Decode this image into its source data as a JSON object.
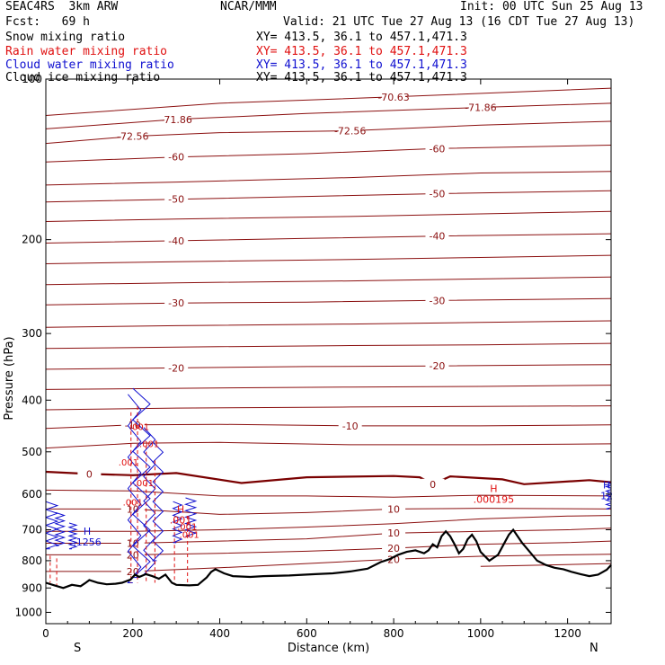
{
  "header": {
    "model": "SEAC4RS  3km ARW",
    "center": "NCAR/MMM",
    "init": "Init: 00 UTC Sun 25 Aug 13",
    "fcst": "Fcst:   69 h",
    "valid": "Valid: 21 UTC Tue 27 Aug 13 (16 CDT Tue 27 Aug 13)"
  },
  "fields": [
    {
      "label": "Snow mixing ratio",
      "xy": "XY= 413.5, 36.1 to 457.1,471.3",
      "color": "#000000"
    },
    {
      "label": "Rain water mixing ratio",
      "xy": "XY= 413.5, 36.1 to 457.1,471.3",
      "color": "#e01010"
    },
    {
      "label": "Cloud water mixing ratio",
      "xy": "XY= 413.5, 36.1 to 457.1,471.3",
      "color": "#1010d0"
    },
    {
      "label": "Cloud ice mixing ratio",
      "xy": "XY= 413.5, 36.1 to 457.1,471.3",
      "color": "#000000"
    }
  ],
  "chart_data": {
    "type": "cross-section",
    "xlabel": "Distance (km)",
    "ylabel": "Pressure (hPa)",
    "xlim": [
      0,
      1300
    ],
    "ylim": [
      1050,
      100
    ],
    "y_scale": "log",
    "x_ticks": [
      0,
      200,
      400,
      600,
      800,
      1000,
      1200
    ],
    "y_ticks": [
      200,
      300,
      400,
      500,
      600,
      700,
      800,
      900,
      1000
    ],
    "y_tick_top_label": "100",
    "x_end_labels": {
      "left": "S",
      "right": "N"
    },
    "temperature_contour_color": "#8b1010",
    "zero_contour_color": "#7a0000",
    "temperature_contours": [
      {
        "label": "-72.56",
        "points": [
          [
            0,
            132
          ],
          [
            200,
            128
          ],
          [
            400,
            126
          ],
          [
            700,
            125
          ],
          [
            1000,
            122
          ],
          [
            1300,
            120
          ]
        ]
      },
      {
        "label": "-71.86",
        "points": [
          [
            0,
            124
          ],
          [
            300,
            119
          ],
          [
            600,
            116
          ],
          [
            1000,
            113
          ],
          [
            1300,
            111
          ]
        ]
      },
      {
        "label": "-70.63",
        "points": [
          [
            0,
            117
          ],
          [
            400,
            111
          ],
          [
            800,
            108
          ],
          [
            1300,
            104
          ]
        ]
      },
      {
        "label": "-60",
        "points": [
          [
            0,
            143
          ],
          [
            300,
            140
          ],
          [
            600,
            138
          ],
          [
            900,
            135
          ],
          [
            1300,
            133
          ]
        ]
      },
      {
        "label": "",
        "points": [
          [
            0,
            158
          ],
          [
            300,
            156
          ],
          [
            700,
            153
          ],
          [
            1000,
            150
          ],
          [
            1300,
            149
          ]
        ]
      },
      {
        "label": "-50",
        "points": [
          [
            0,
            170
          ],
          [
            300,
            168
          ],
          [
            600,
            166
          ],
          [
            900,
            164
          ],
          [
            1300,
            162
          ]
        ]
      },
      {
        "label": "",
        "points": [
          [
            0,
            185
          ],
          [
            300,
            183
          ],
          [
            700,
            181
          ],
          [
            1000,
            179
          ],
          [
            1300,
            177
          ]
        ]
      },
      {
        "label": "-40",
        "points": [
          [
            0,
            203
          ],
          [
            300,
            201
          ],
          [
            600,
            199
          ],
          [
            900,
            197
          ],
          [
            1300,
            195
          ]
        ]
      },
      {
        "label": "",
        "points": [
          [
            0,
            222
          ],
          [
            300,
            220
          ],
          [
            700,
            218
          ],
          [
            1000,
            216
          ],
          [
            1300,
            214
          ]
        ]
      },
      {
        "label": "",
        "points": [
          [
            0,
            243
          ],
          [
            300,
            241
          ],
          [
            700,
            239
          ],
          [
            1000,
            237
          ],
          [
            1300,
            235
          ]
        ]
      },
      {
        "label": "-30",
        "points": [
          [
            0,
            265
          ],
          [
            300,
            263
          ],
          [
            600,
            262
          ],
          [
            900,
            260
          ],
          [
            1300,
            258
          ]
        ]
      },
      {
        "label": "",
        "points": [
          [
            0,
            292
          ],
          [
            300,
            290
          ],
          [
            700,
            288
          ],
          [
            1000,
            286
          ],
          [
            1300,
            284
          ]
        ]
      },
      {
        "label": "",
        "points": [
          [
            0,
            320
          ],
          [
            300,
            318
          ],
          [
            700,
            316
          ],
          [
            1000,
            315
          ],
          [
            1300,
            313
          ]
        ]
      },
      {
        "label": "-20",
        "points": [
          [
            0,
            350
          ],
          [
            300,
            348
          ],
          [
            600,
            346
          ],
          [
            900,
            345
          ],
          [
            1300,
            343
          ]
        ]
      },
      {
        "label": "",
        "points": [
          [
            0,
            382
          ],
          [
            300,
            380
          ],
          [
            700,
            378
          ],
          [
            1000,
            377
          ],
          [
            1300,
            375
          ]
        ]
      },
      {
        "label": "",
        "points": [
          [
            0,
            417
          ],
          [
            300,
            414
          ],
          [
            700,
            412
          ],
          [
            1000,
            411
          ],
          [
            1300,
            410
          ]
        ]
      },
      {
        "label": "-10",
        "points": [
          [
            0,
            452
          ],
          [
            200,
            445
          ],
          [
            400,
            444
          ],
          [
            700,
            447
          ],
          [
            1000,
            447
          ],
          [
            1300,
            445
          ]
        ]
      },
      {
        "label": "",
        "points": [
          [
            0,
            492
          ],
          [
            200,
            482
          ],
          [
            400,
            480
          ],
          [
            700,
            485
          ],
          [
            1000,
            485
          ],
          [
            1300,
            483
          ]
        ]
      },
      {
        "label": "0",
        "points": [
          [
            0,
            545
          ],
          [
            100,
            550
          ],
          [
            200,
            553
          ],
          [
            300,
            548
          ],
          [
            450,
            572
          ],
          [
            600,
            558
          ],
          [
            800,
            555
          ],
          [
            860,
            558
          ],
          [
            890,
            575
          ],
          [
            930,
            556
          ],
          [
            1050,
            563
          ],
          [
            1100,
            575
          ],
          [
            1250,
            565
          ],
          [
            1300,
            570
          ]
        ]
      },
      {
        "label": "",
        "points": [
          [
            0,
            590
          ],
          [
            200,
            592
          ],
          [
            400,
            605
          ],
          [
            600,
            605
          ],
          [
            800,
            608
          ],
          [
            1000,
            603
          ],
          [
            1300,
            605
          ]
        ]
      },
      {
        "label": "10",
        "points": [
          [
            0,
            640
          ],
          [
            200,
            640
          ],
          [
            400,
            655
          ],
          [
            600,
            650
          ],
          [
            800,
            640
          ],
          [
            1000,
            638
          ],
          [
            1300,
            640
          ]
        ]
      },
      {
        "label": "",
        "points": [
          [
            0,
            705
          ],
          [
            200,
            705
          ],
          [
            400,
            700
          ],
          [
            600,
            692
          ],
          [
            800,
            682
          ],
          [
            1000,
            668
          ],
          [
            1200,
            660
          ],
          [
            1300,
            658
          ]
        ]
      },
      {
        "label": "10",
        "points": [
          [
            0,
            742
          ],
          [
            200,
            742
          ],
          [
            400,
            735
          ],
          [
            600,
            728
          ],
          [
            800,
            710
          ],
          [
            1000,
            705
          ],
          [
            1200,
            700
          ],
          [
            1300,
            695
          ]
        ]
      },
      {
        "label": "20",
        "points": [
          [
            0,
            780
          ],
          [
            200,
            780
          ],
          [
            400,
            775
          ],
          [
            600,
            768
          ],
          [
            800,
            758
          ],
          [
            1000,
            745
          ],
          [
            1200,
            740
          ],
          [
            1300,
            735
          ]
        ]
      },
      {
        "label": "20",
        "points": [
          [
            0,
            838
          ],
          [
            200,
            838
          ],
          [
            400,
            825
          ],
          [
            600,
            810
          ],
          [
            800,
            795
          ],
          [
            1000,
            785
          ],
          [
            1200,
            780
          ],
          [
            1300,
            778
          ]
        ]
      },
      {
        "label": "",
        "points": [
          [
            1000,
            820
          ],
          [
            1150,
            815
          ],
          [
            1300,
            810
          ]
        ]
      }
    ],
    "terrain": [
      [
        0,
        880
      ],
      [
        20,
        890
      ],
      [
        40,
        900
      ],
      [
        60,
        888
      ],
      [
        80,
        893
      ],
      [
        90,
        882
      ],
      [
        100,
        870
      ],
      [
        120,
        880
      ],
      [
        140,
        886
      ],
      [
        160,
        884
      ],
      [
        175,
        880
      ],
      [
        195,
        868
      ],
      [
        205,
        850
      ],
      [
        215,
        858
      ],
      [
        230,
        848
      ],
      [
        245,
        855
      ],
      [
        260,
        865
      ],
      [
        275,
        850
      ],
      [
        290,
        880
      ],
      [
        300,
        888
      ],
      [
        330,
        890
      ],
      [
        350,
        888
      ],
      [
        370,
        860
      ],
      [
        380,
        840
      ],
      [
        390,
        830
      ],
      [
        410,
        845
      ],
      [
        430,
        855
      ],
      [
        470,
        858
      ],
      [
        500,
        855
      ],
      [
        560,
        853
      ],
      [
        620,
        848
      ],
      [
        660,
        845
      ],
      [
        700,
        838
      ],
      [
        740,
        828
      ],
      [
        770,
        805
      ],
      [
        790,
        795
      ],
      [
        810,
        780
      ],
      [
        830,
        770
      ],
      [
        850,
        765
      ],
      [
        870,
        775
      ],
      [
        880,
        765
      ],
      [
        890,
        745
      ],
      [
        900,
        755
      ],
      [
        910,
        720
      ],
      [
        920,
        705
      ],
      [
        930,
        720
      ],
      [
        940,
        745
      ],
      [
        950,
        775
      ],
      [
        960,
        760
      ],
      [
        970,
        730
      ],
      [
        980,
        715
      ],
      [
        990,
        735
      ],
      [
        1000,
        770
      ],
      [
        1020,
        800
      ],
      [
        1040,
        780
      ],
      [
        1055,
        740
      ],
      [
        1065,
        715
      ],
      [
        1075,
        700
      ],
      [
        1085,
        720
      ],
      [
        1095,
        740
      ],
      [
        1110,
        765
      ],
      [
        1130,
        800
      ],
      [
        1150,
        815
      ],
      [
        1170,
        825
      ],
      [
        1190,
        830
      ],
      [
        1210,
        840
      ],
      [
        1230,
        848
      ],
      [
        1250,
        855
      ],
      [
        1270,
        850
      ],
      [
        1290,
        832
      ],
      [
        1300,
        815
      ]
    ],
    "annotations": [
      {
        "text": "H",
        "sub": ".1256",
        "x": 95,
        "p": 715,
        "color": "#1010d0"
      },
      {
        "text": "H",
        "sub": "12",
        "x": 1290,
        "p": 585,
        "color": "#1010d0"
      },
      {
        "text": "H",
        "sub": ".000195",
        "x": 1030,
        "p": 595,
        "color": "#e01010"
      },
      {
        "text": "H",
        "sub": ".001",
        "x": 310,
        "p": 650,
        "color": "#e01010"
      }
    ],
    "small_labels": [
      {
        "text": ".001",
        "x": 215,
        "p": 455,
        "color": "#e01010"
      },
      {
        "text": ".001",
        "x": 238,
        "p": 490,
        "color": "#e01010"
      },
      {
        "text": ".001",
        "x": 190,
        "p": 530,
        "color": "#e01010"
      },
      {
        "text": ".001",
        "x": 225,
        "p": 580,
        "color": "#e01010"
      },
      {
        "text": ".001",
        "x": 200,
        "p": 630,
        "color": "#e01010"
      },
      {
        "text": ".001",
        "x": 325,
        "p": 700,
        "color": "#e01010"
      },
      {
        "text": ".001",
        "x": 330,
        "p": 725,
        "color": "#e01010"
      }
    ]
  }
}
